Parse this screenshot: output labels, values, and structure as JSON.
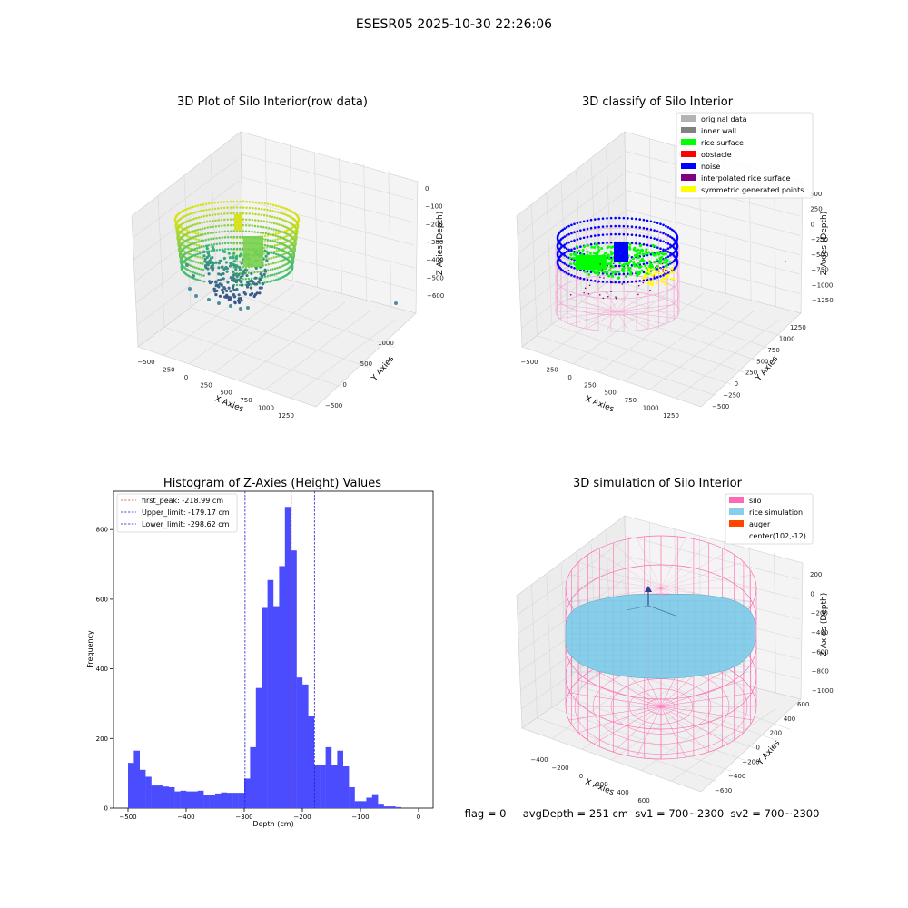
{
  "suptitle": "ESESR05 2025-10-30 22:26:06",
  "colors": {
    "hist_bar": "#4c4cff",
    "peak_line": "#e8404a",
    "limit_line": "#1f1fcf",
    "silo": "#ff69b4",
    "rice": "#87ceeb",
    "auger": "#ff4500",
    "viridis_low": "#3b528b",
    "viridis_high": "#d8e219"
  },
  "plot3d_raw": {
    "title": "3D Plot of Silo Interior(row data)",
    "xlabel": "X Axies",
    "ylabel": "Y Axies",
    "zlabel": "Z Axies (Depth)",
    "xticks": [
      "−500",
      "−250",
      "0",
      "250",
      "500",
      "750",
      "1000",
      "1250"
    ],
    "yticks": [
      "−500",
      "0",
      "500",
      "1000"
    ],
    "zticks": [
      "0",
      "−100",
      "−200",
      "−300",
      "−400",
      "−500",
      "−600"
    ]
  },
  "plot3d_classify": {
    "title": "3D classify of Silo Interior",
    "xlabel": "X Axies",
    "ylabel": "Y Axies",
    "zlabel": "Z Axies (Depth)",
    "xticks": [
      "−500",
      "−250",
      "0",
      "250",
      "500",
      "750",
      "1000",
      "1250"
    ],
    "yticks": [
      "−500",
      "−250",
      "0",
      "250",
      "500",
      "750",
      "1000",
      "1250"
    ],
    "zticks": [
      "500",
      "250",
      "0",
      "−250",
      "−500",
      "−750",
      "−1000",
      "−1250"
    ],
    "legend": [
      {
        "label": "original data",
        "color": "#b3b3b3"
      },
      {
        "label": "inner wall",
        "color": "#808080"
      },
      {
        "label": "rice surface",
        "color": "#00ff00"
      },
      {
        "label": "obstacle",
        "color": "#ff0000"
      },
      {
        "label": "noise",
        "color": "#0000ff"
      },
      {
        "label": "interpolated rice surface",
        "color": "#800080"
      },
      {
        "label": "symmetric generated points",
        "color": "#ffff00"
      }
    ]
  },
  "plot3d_sim": {
    "title": "3D simulation of Silo Interior",
    "xlabel": "X Axies",
    "ylabel": "Y Axies",
    "zlabel": "Z Axies (Depth)",
    "xticks": [
      "−400",
      "−200",
      "0",
      "200",
      "400",
      "600"
    ],
    "yticks": [
      "−600",
      "−400",
      "−200",
      "0",
      "200",
      "400",
      "600"
    ],
    "zticks": [
      "200",
      "0",
      "−200",
      "−400",
      "−600",
      "−800",
      "−1000"
    ],
    "legend": [
      {
        "label": "silo",
        "color": "#ff69b4"
      },
      {
        "label": "rice simulation",
        "color": "#87ceeb"
      },
      {
        "label": "auger",
        "color": "#ff4500"
      },
      {
        "label": "center(102,-12)",
        "color": ""
      }
    ]
  },
  "status_line": "flag = 0     avgDepth = 251 cm  sv1 = 700~2300  sv2 = 700~2300",
  "chart_data": {
    "type": "bar",
    "title": "Histogram of Z-Axies (Height) Values",
    "xlabel": "Depth (cm)",
    "ylabel": "Frequency",
    "xlim": [
      -525,
      25
    ],
    "ylim": [
      0,
      910
    ],
    "xticks": [
      -500,
      -400,
      -300,
      -200,
      -100,
      0
    ],
    "xtick_labels": [
      "−500",
      "−400",
      "−300",
      "−200",
      "−100",
      "0"
    ],
    "yticks": [
      0,
      200,
      400,
      600,
      800
    ],
    "yticks_labels": [
      "0",
      "200",
      "400",
      "600",
      "800"
    ],
    "bin_start": -500,
    "bin_width": 10,
    "values": [
      130,
      165,
      110,
      90,
      65,
      65,
      62,
      60,
      48,
      50,
      48,
      48,
      50,
      38,
      38,
      42,
      45,
      44,
      44,
      44,
      85,
      175,
      345,
      575,
      655,
      580,
      695,
      865,
      740,
      375,
      355,
      265,
      125,
      125,
      175,
      125,
      165,
      120,
      60,
      20,
      20,
      30,
      40,
      10,
      5,
      5,
      3
    ],
    "vlines": [
      {
        "label": "first_peak: -218.99 cm",
        "x": -218.99,
        "color": "#e8404a"
      },
      {
        "label": "Upper_limit: -179.17 cm",
        "x": -179.17,
        "color": "#1f1fcf"
      },
      {
        "label": "Lower_limit: -298.62 cm",
        "x": -298.62,
        "color": "#1f1fcf"
      }
    ],
    "legend_position": "top-left"
  }
}
